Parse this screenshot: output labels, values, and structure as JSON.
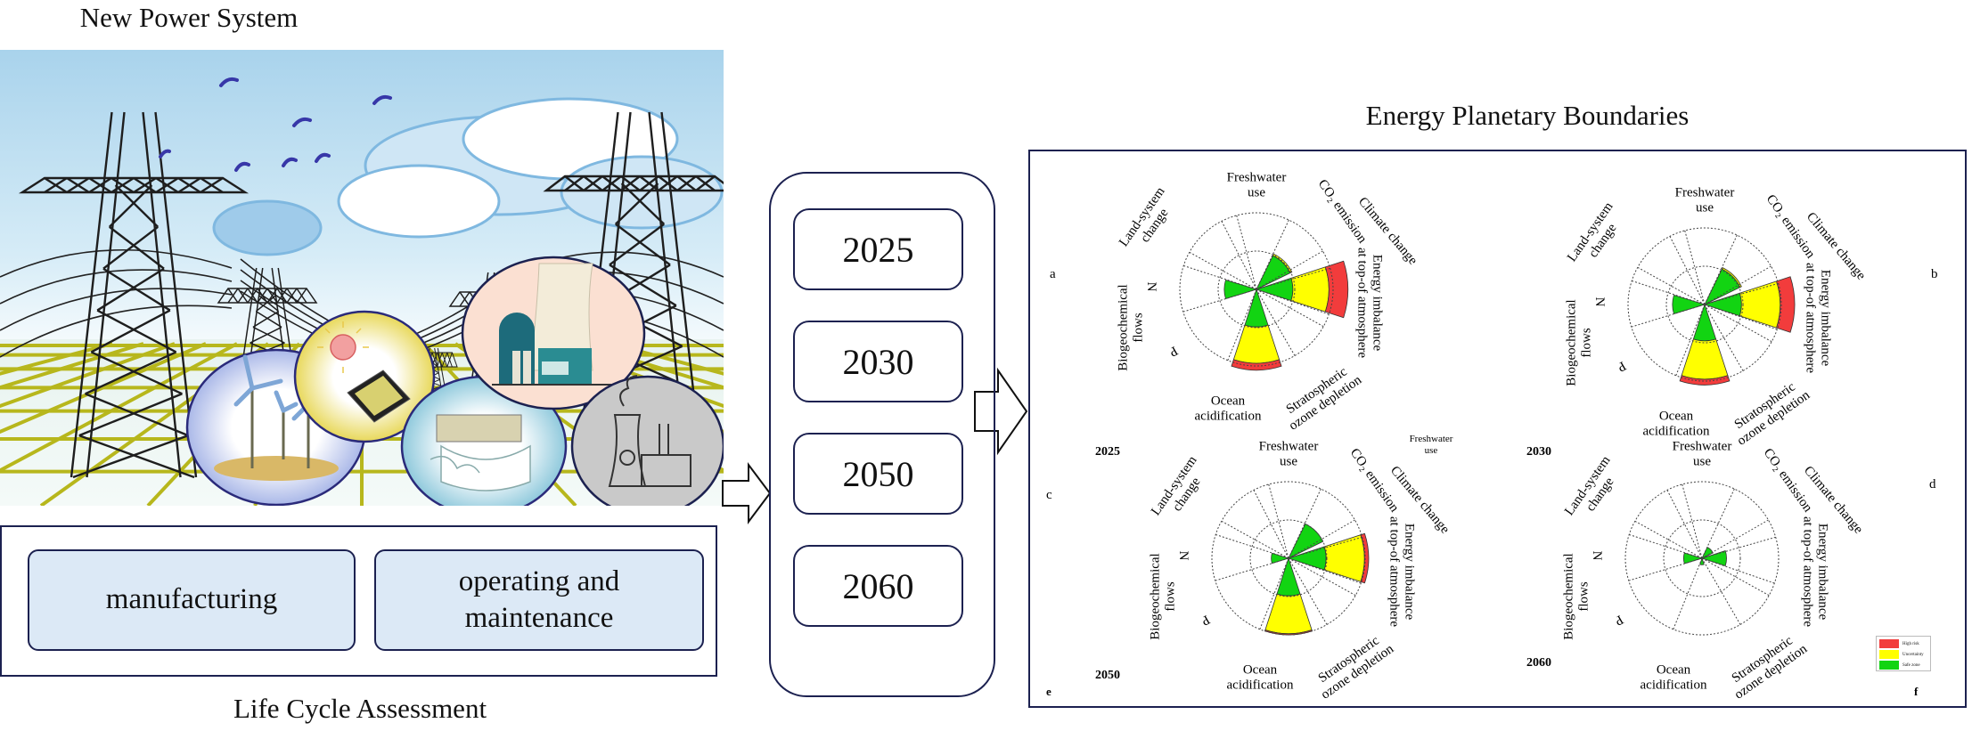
{
  "left": {
    "title": "New Power System",
    "illustration_bubbles": [
      "wind-power",
      "solar-power",
      "hydro-power",
      "nuclear-power",
      "thermal-power"
    ],
    "lca": {
      "stages": [
        "manufacturing",
        "operating and maintenance"
      ],
      "caption": "Life Cycle Assessment"
    }
  },
  "years": [
    "2025",
    "2030",
    "2050",
    "2060"
  ],
  "right": {
    "title": "Energy Planetary Boundaries",
    "stray_label": [
      "Freshwater",
      "use"
    ]
  },
  "colors": {
    "high_risk": "#f23c3c",
    "uncertainty": "#ffff00",
    "safe_zone": "#12d412",
    "frame": "#1c2150"
  },
  "chart_data": {
    "type": "polar-area",
    "boundary_labels": [
      {
        "key": "freshwater",
        "lines": [
          "Freshwater",
          "use"
        ]
      },
      {
        "key": "co2",
        "lines": [
          "CO₂ emission"
        ]
      },
      {
        "key": "climate",
        "lines": [
          "Climate change"
        ]
      },
      {
        "key": "energy",
        "lines": [
          "Energy imbalance",
          "at top-of atmosphere"
        ]
      },
      {
        "key": "ozone",
        "lines": [
          "Stratospheric",
          "ozone depletion"
        ]
      },
      {
        "key": "ocean",
        "lines": [
          "Ocean",
          "acidification"
        ]
      },
      {
        "key": "p",
        "lines": [
          "P"
        ]
      },
      {
        "key": "bio",
        "lines": [
          "Biogeochemical",
          "flows"
        ]
      },
      {
        "key": "n",
        "lines": [
          "N"
        ]
      },
      {
        "key": "land",
        "lines": [
          "Land-system",
          "change"
        ]
      }
    ],
    "legend": [
      {
        "label": "High risk",
        "color": "#f23c3c"
      },
      {
        "label": "Uncertainty",
        "color": "#ffff00"
      },
      {
        "label": "Safe zone",
        "color": "#12d412"
      }
    ],
    "grid_circles": [
      1,
      2
    ],
    "panels": [
      {
        "letter": "a",
        "year": "2025",
        "bars": [
          {
            "category": "Energy imbalance at top-of atmosphere",
            "segments": [
              {
                "zone": "Safe zone",
                "to": 0.95
              },
              {
                "zone": "Uncertainty",
                "to": 1.89
              },
              {
                "zone": "High risk",
                "to": 2.39
              }
            ]
          },
          {
            "category": "CO₂ emission",
            "segments": [
              {
                "zone": "Safe zone",
                "to": 0.98
              },
              {
                "zone": "Uncertainty",
                "to": 1.03
              }
            ]
          },
          {
            "category": "N",
            "segments": [
              {
                "zone": "Safe zone",
                "to": 0.84
              }
            ]
          },
          {
            "category": "Ocean acidification",
            "segments": [
              {
                "zone": "Safe zone",
                "to": 0.98
              },
              {
                "zone": "Uncertainty",
                "to": 1.93
              },
              {
                "zone": "High risk",
                "to": 2.11
              }
            ]
          }
        ]
      },
      {
        "letter": "b",
        "year": "2030",
        "bars": [
          {
            "category": "Energy imbalance at top-of atmosphere",
            "segments": [
              {
                "zone": "Safe zone",
                "to": 0.96
              },
              {
                "zone": "Uncertainty",
                "to": 1.97
              },
              {
                "zone": "High risk",
                "to": 2.35
              }
            ]
          },
          {
            "category": "CO₂ emission",
            "segments": [
              {
                "zone": "Safe zone",
                "to": 1.03
              },
              {
                "zone": "Uncertainty",
                "to": 1.07
              }
            ]
          },
          {
            "category": "N",
            "segments": [
              {
                "zone": "Safe zone",
                "to": 0.84
              }
            ]
          },
          {
            "category": "Ocean acidification",
            "segments": [
              {
                "zone": "Safe zone",
                "to": 0.95
              },
              {
                "zone": "Uncertainty",
                "to": 1.95
              },
              {
                "zone": "High risk",
                "to": 2.1
              }
            ]
          }
        ]
      },
      {
        "letter": "c",
        "year": "2050",
        "bars": [
          {
            "category": "Energy imbalance at top-of atmosphere",
            "segments": [
              {
                "zone": "Safe zone",
                "to": 0.98
              },
              {
                "zone": "Uncertainty",
                "to": 1.98
              },
              {
                "zone": "High risk",
                "to": 2.09
              }
            ]
          },
          {
            "category": "CO₂ emission",
            "segments": [
              {
                "zone": "Safe zone",
                "to": 1.0
              }
            ]
          },
          {
            "category": "N",
            "segments": [
              {
                "zone": "Safe zone",
                "to": 0.45
              }
            ]
          },
          {
            "category": "Ocean acidification",
            "segments": [
              {
                "zone": "Safe zone",
                "to": 0.98
              },
              {
                "zone": "Uncertainty",
                "to": 1.97
              },
              {
                "zone": "High risk",
                "to": 2.0
              }
            ]
          }
        ]
      },
      {
        "letter": "d",
        "year": "2060",
        "bars": [
          {
            "category": "Energy imbalance at top-of atmosphere",
            "segments": [
              {
                "zone": "Safe zone",
                "to": 0.64
              }
            ]
          },
          {
            "category": "CO₂ emission",
            "segments": [
              {
                "zone": "Safe zone",
                "to": 0.32
              }
            ]
          },
          {
            "category": "N",
            "segments": [
              {
                "zone": "Safe zone",
                "to": 0.48
              }
            ]
          },
          {
            "category": "Ocean acidification",
            "segments": [
              {
                "zone": "Safe zone",
                "to": 0.17
              }
            ]
          }
        ]
      }
    ],
    "corner_letters": [
      "e",
      "f"
    ]
  }
}
